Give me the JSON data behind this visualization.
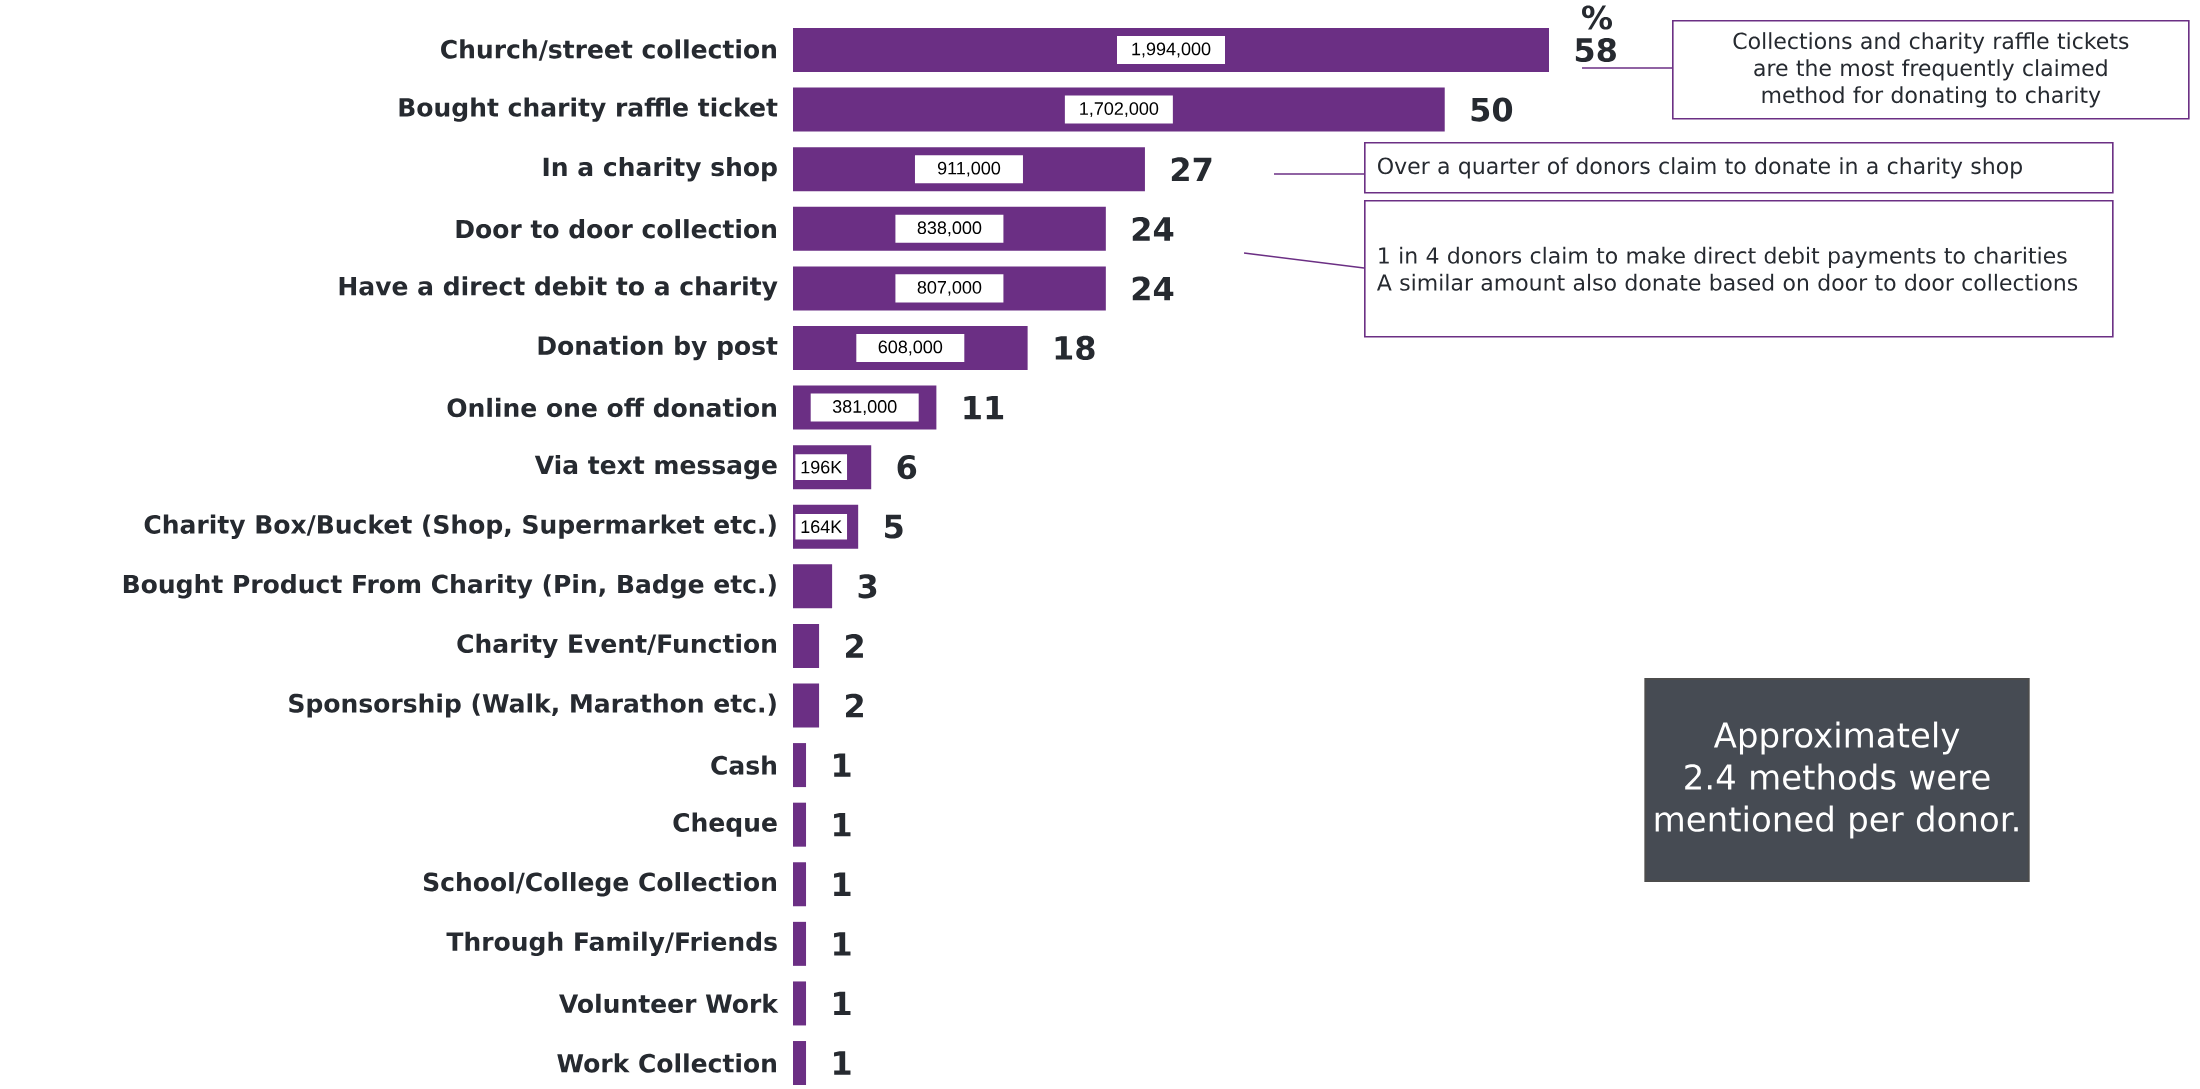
{
  "chart_data": {
    "type": "bar",
    "orientation": "horizontal",
    "xlabel": "%",
    "categories": [
      "Church/street collection",
      "Bought charity raffle ticket",
      "In a charity shop",
      "Door to door collection",
      "Have a direct debit to a charity",
      "Donation by post",
      "Online one off donation",
      "Via text message",
      "Charity Box/Bucket (Shop, Supermarket etc.)",
      "Bought Product From Charity (Pin, Badge etc.)",
      "Charity Event/Function",
      "Sponsorship (Walk, Marathon etc.)",
      "Cash",
      "Cheque",
      "School/College Collection",
      "Through Family/Friends",
      "Volunteer Work",
      "Work Collection"
    ],
    "values": [
      58,
      50,
      27,
      24,
      24,
      18,
      11,
      6,
      5,
      3,
      2,
      2,
      1,
      1,
      1,
      1,
      1,
      1
    ],
    "color": "#6b2f84",
    "data_labels": true,
    "annotations": [
      {
        "text": "1,994,000",
        "y": "Church/street collection"
      },
      {
        "text": "1,702,000",
        "y": "Bought charity raffle ticket"
      },
      {
        "text": "911,000",
        "y": "In a charity shop"
      },
      {
        "text": "838,000",
        "y": "Door to door collection"
      },
      {
        "text": "807,000",
        "y": "Have a direct debit to a charity"
      },
      {
        "text": "608,000",
        "y": "Donation by post"
      },
      {
        "text": "381,000",
        "y": "Online one off donation"
      },
      {
        "text": "196K",
        "y": "Via text message"
      },
      {
        "text": "164K",
        "y": "Charity Box/Bucket (Shop, Supermarket etc.)"
      },
      "Collections and charity raffle tickets are the most frequently claimed method for donating to charity",
      "Over a quarter of donors claim to donate in a charity shop",
      "1 in 4  donors claim to make direct debit payments to charities",
      "A similar amount also donate based on door to door collections",
      "Approximately 2.4 methods were mentioned per donor."
    ]
  }
}
